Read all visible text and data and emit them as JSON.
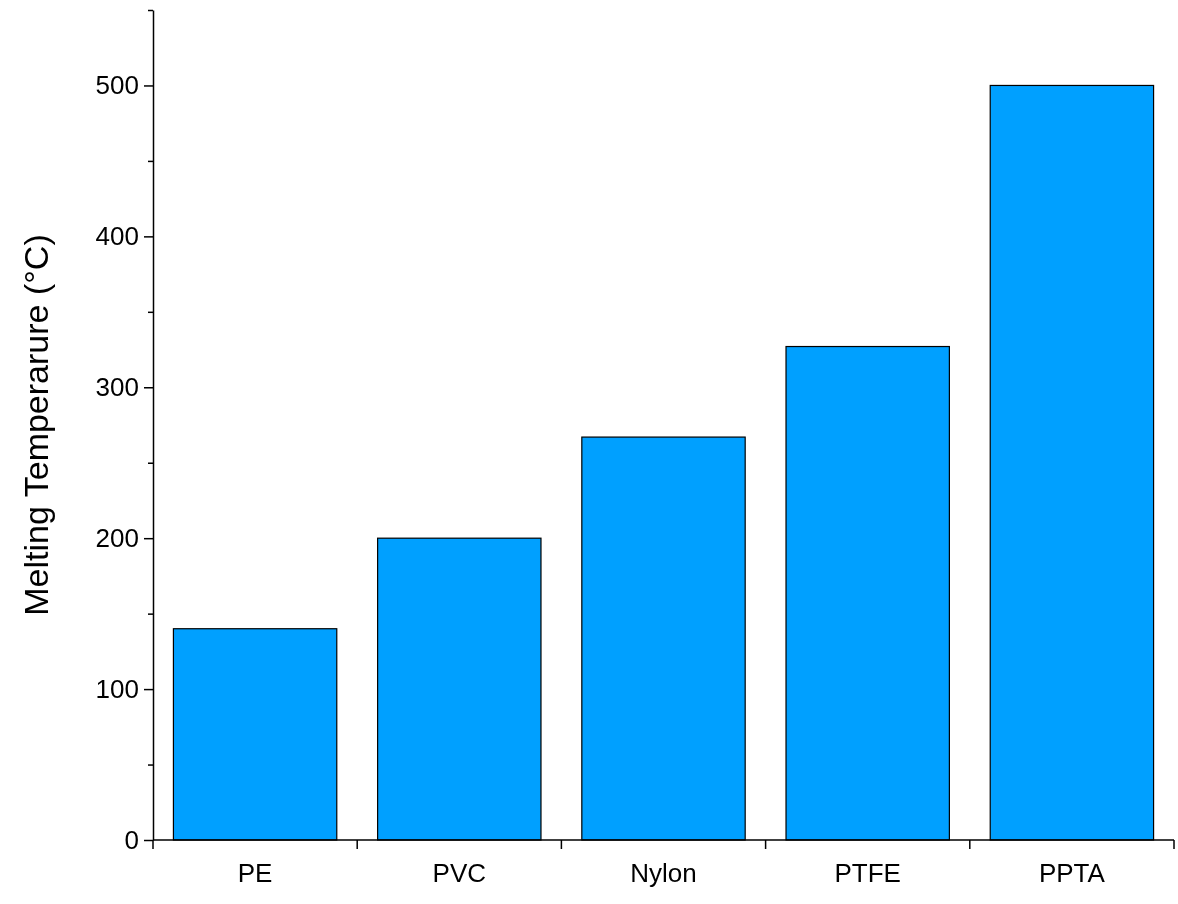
{
  "chart_data": {
    "type": "bar",
    "ylabel": "Melting Temperarure (°C)",
    "categories": [
      "PE",
      "PVC",
      "Nylon",
      "PTFE",
      "PPTA"
    ],
    "values": [
      140,
      200,
      267,
      327,
      500
    ],
    "color": "#00a0ff",
    "ylim": [
      0,
      550
    ],
    "yticks": [
      0,
      {
        "value": 50,
        "label": null
      },
      100,
      {
        "value": 150,
        "label": null
      },
      200,
      {
        "value": 250,
        "label": null
      },
      300,
      {
        "value": 350,
        "label": null
      },
      400,
      {
        "value": 450,
        "label": null
      },
      500,
      {
        "value": 550,
        "label": null
      }
    ],
    "grid": false
  }
}
